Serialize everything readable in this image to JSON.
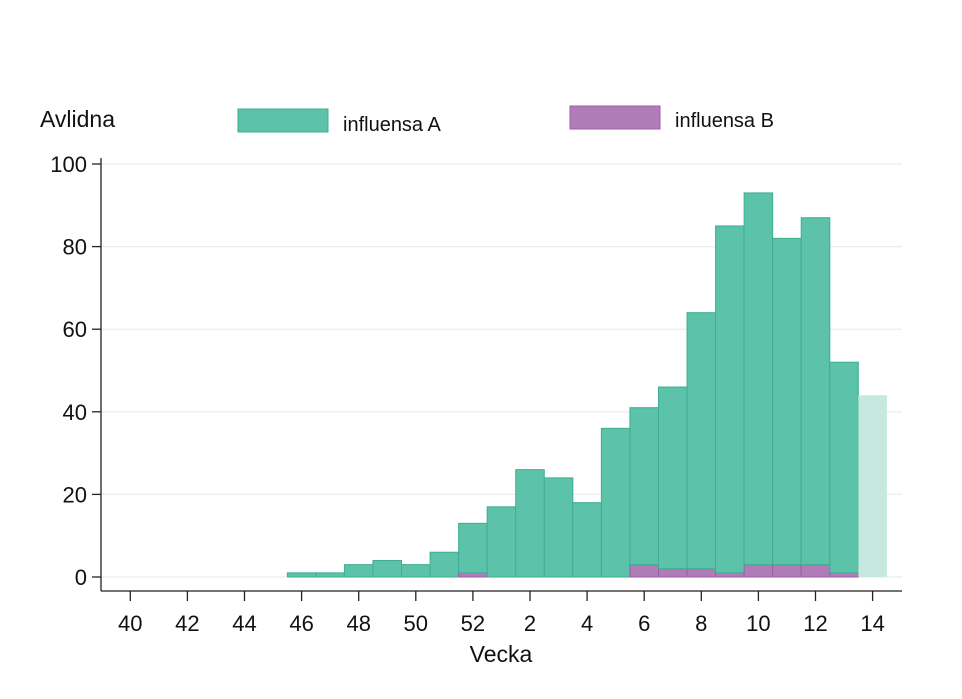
{
  "chart_data": {
    "type": "bar",
    "stacked": true,
    "ylabel": "Avlidna",
    "xlabel": "Vecka",
    "ylim": [
      0,
      100
    ],
    "yticks": [
      0,
      20,
      40,
      60,
      80,
      100
    ],
    "grid": true,
    "legend_position": "top",
    "categories": [
      "40",
      "41",
      "42",
      "43",
      "44",
      "45",
      "46",
      "47",
      "48",
      "49",
      "50",
      "51",
      "52",
      "1",
      "2",
      "3",
      "4",
      "5",
      "6",
      "7",
      "8",
      "9",
      "10",
      "11",
      "12",
      "13",
      "14"
    ],
    "xtick_labels": [
      "40",
      "42",
      "44",
      "46",
      "48",
      "50",
      "52",
      "2",
      "4",
      "6",
      "8",
      "10",
      "12",
      "14"
    ],
    "series": [
      {
        "name": "influensa A",
        "color": "#5cc2aa",
        "values": [
          0,
          0,
          0,
          0,
          0,
          0,
          1,
          1,
          3,
          4,
          3,
          6,
          12,
          17,
          26,
          24,
          18,
          36,
          38,
          44,
          62,
          84,
          90,
          79,
          84,
          51,
          44
        ]
      },
      {
        "name": "influensa B",
        "color": "#b07cb8",
        "values": [
          0,
          0,
          0,
          0,
          0,
          0,
          0,
          0,
          0,
          0,
          0,
          0,
          1,
          0,
          0,
          0,
          0,
          0,
          3,
          2,
          2,
          1,
          3,
          3,
          3,
          1,
          0
        ]
      }
    ],
    "preliminary_categories": [
      "14"
    ],
    "preliminary_color": "#c5e9df"
  }
}
